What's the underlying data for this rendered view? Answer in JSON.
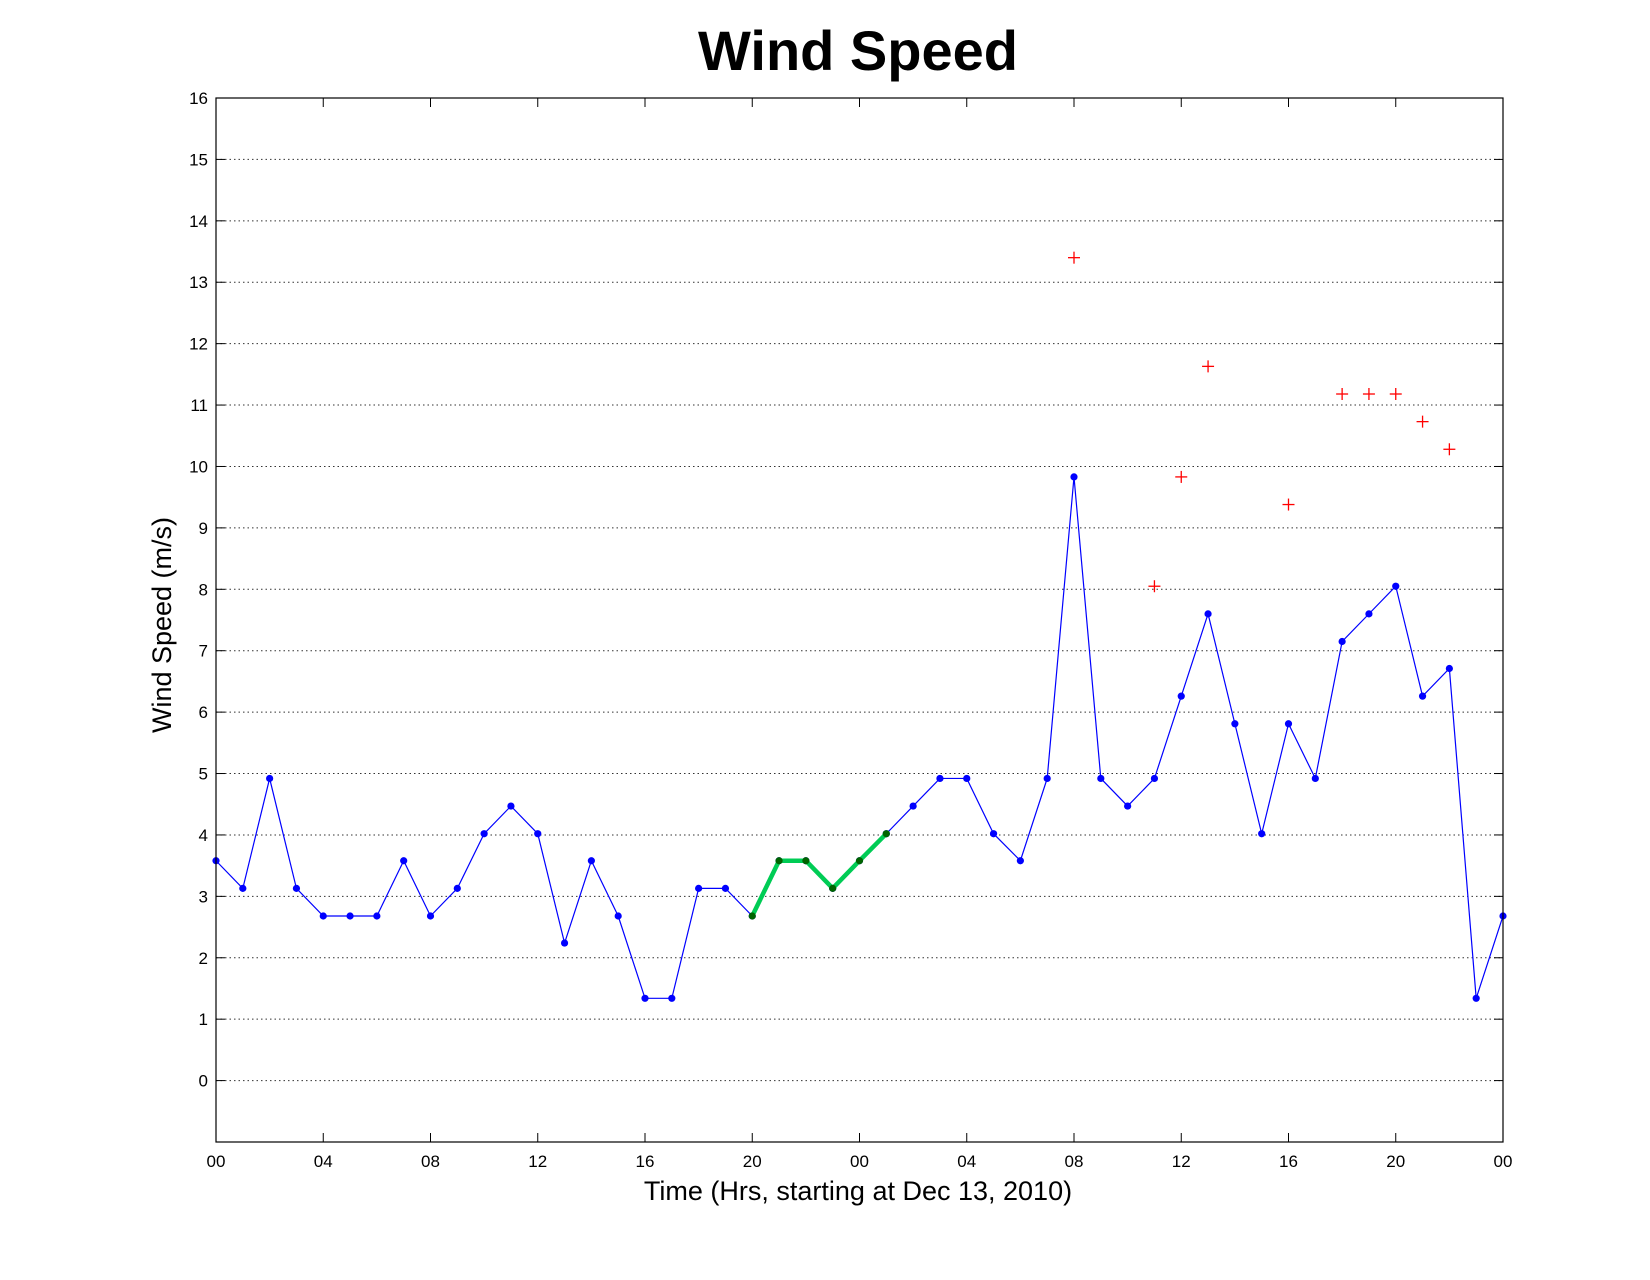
{
  "chart_data": {
    "type": "line",
    "title": "Wind Speed",
    "xlabel": "Time (Hrs, starting at Dec 13, 2010)",
    "ylabel": "Wind Speed (m/s)",
    "x_unit": "hours",
    "xlim": [
      0,
      48
    ],
    "ylim": [
      -1,
      16
    ],
    "yticks": [
      0,
      1,
      2,
      3,
      4,
      5,
      6,
      7,
      8,
      9,
      10,
      11,
      12,
      13,
      14,
      15,
      16
    ],
    "xticks": [
      0,
      4,
      8,
      12,
      16,
      20,
      24,
      28,
      32,
      36,
      40,
      44,
      48
    ],
    "xtick_labels": [
      "00",
      "04",
      "08",
      "12",
      "16",
      "20",
      "00",
      "04",
      "08",
      "12",
      "16",
      "20",
      "00"
    ],
    "grid": "y-dotted",
    "series": [
      {
        "style": "blue-line-dots",
        "color": "#0000ff",
        "x": [
          0,
          1,
          2,
          3,
          4,
          5,
          6,
          7,
          8,
          9,
          10,
          11,
          12,
          13,
          14,
          15,
          16,
          17,
          18,
          19,
          20,
          21,
          22,
          23,
          24,
          25,
          26,
          27,
          28,
          29,
          30,
          31,
          32,
          33,
          34,
          35,
          36,
          37,
          38,
          39,
          40,
          41,
          42,
          43,
          44,
          45,
          46,
          47,
          48
        ],
        "values": [
          3.58,
          3.13,
          4.92,
          3.13,
          2.68,
          2.68,
          2.68,
          3.58,
          2.68,
          3.13,
          4.02,
          4.47,
          4.02,
          2.24,
          3.58,
          2.68,
          1.34,
          1.34,
          3.13,
          3.13,
          2.68,
          3.58,
          3.58,
          3.13,
          3.58,
          4.02,
          4.47,
          4.92,
          4.92,
          4.02,
          3.58,
          4.92,
          9.83,
          4.92,
          4.47,
          4.92,
          6.26,
          7.6,
          5.81,
          4.02,
          5.81,
          4.92,
          7.15,
          7.6,
          8.05,
          6.26,
          6.71,
          1.34,
          2.68
        ]
      },
      {
        "style": "green-highlight",
        "color": "#00cc55",
        "marker_color": "#006400",
        "x": [
          20,
          21,
          22,
          23,
          24,
          25
        ],
        "values": [
          2.68,
          3.58,
          3.58,
          3.13,
          3.58,
          4.02
        ]
      },
      {
        "style": "red-plus",
        "color": "#ff0000",
        "x": [
          32,
          35,
          36,
          37,
          40,
          42,
          43,
          44,
          45,
          46
        ],
        "values": [
          13.4,
          8.05,
          9.83,
          11.63,
          9.38,
          11.18,
          11.18,
          11.18,
          10.73,
          10.28
        ]
      }
    ]
  }
}
